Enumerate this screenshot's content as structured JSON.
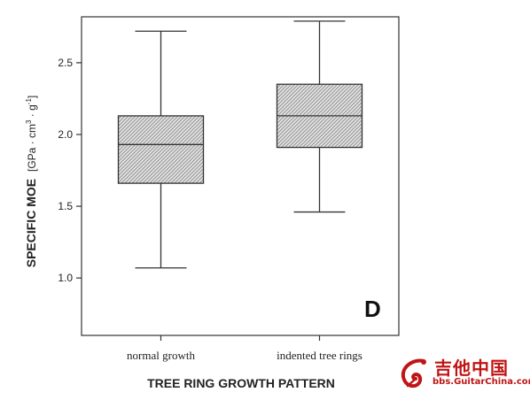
{
  "chart_data": {
    "type": "box",
    "panel_label": "D",
    "xlabel": "TREE RING GROWTH PATTERN",
    "ylabel_main": "SPECIFIC MOE",
    "ylabel_unit_open": "[GPa · cm",
    "ylabel_unit_exp1": "3",
    "ylabel_unit_mid": " · g",
    "ylabel_unit_exp2": "-1",
    "ylabel_unit_close": "]",
    "ylim": [
      0.6,
      2.82
    ],
    "yticks": [
      1.0,
      1.5,
      2.0,
      2.5
    ],
    "ytick_labels": [
      "1.0",
      "1.5",
      "2.0",
      "2.5"
    ],
    "categories": [
      "normal growth",
      "indented tree rings"
    ],
    "boxes": [
      {
        "category": "normal growth",
        "min": 1.07,
        "q1": 1.66,
        "median": 1.93,
        "q3": 2.13,
        "max": 2.72
      },
      {
        "category": "indented tree rings",
        "min": 1.46,
        "q1": 1.91,
        "median": 2.13,
        "q3": 2.35,
        "max": 2.79
      }
    ],
    "grid": false
  },
  "watermark": {
    "text_cn": "吉他中国",
    "text_url": "bbs.GuitarChina.com",
    "color": "#c01515"
  }
}
